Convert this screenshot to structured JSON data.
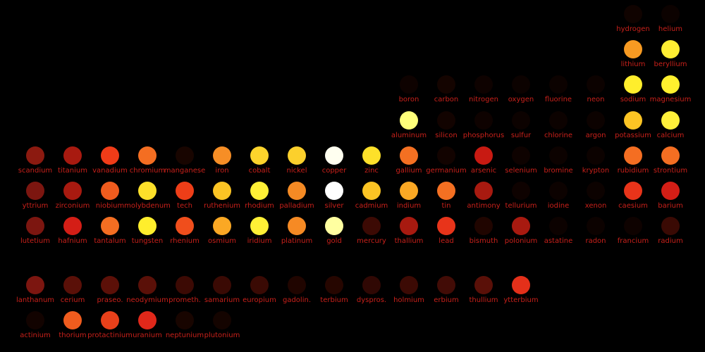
{
  "label_color": "#c8201a",
  "elements": [
    {
      "name": "hydrogen",
      "row": 0,
      "col": 17,
      "color": "#100300"
    },
    {
      "name": "helium",
      "row": 0,
      "col": 18,
      "color": "#0c0200"
    },
    {
      "name": "lithium",
      "row": 1,
      "col": 17,
      "color": "#f79a22"
    },
    {
      "name": "beryllium",
      "row": 1,
      "col": 18,
      "color": "#ffee33"
    },
    {
      "name": "boron",
      "row": 2,
      "col": 11,
      "color": "#0e0200"
    },
    {
      "name": "carbon",
      "row": 2,
      "col": 12,
      "color": "#140400"
    },
    {
      "name": "nitrogen",
      "row": 2,
      "col": 13,
      "color": "#0e0200"
    },
    {
      "name": "oxygen",
      "row": 2,
      "col": 14,
      "color": "#0c0200"
    },
    {
      "name": "fluorine",
      "row": 2,
      "col": 15,
      "color": "#0c0200"
    },
    {
      "name": "neon",
      "row": 2,
      "col": 16,
      "color": "#0c0200"
    },
    {
      "name": "sodium",
      "row": 2,
      "col": 17,
      "color": "#ffee2c"
    },
    {
      "name": "magnesium",
      "row": 2,
      "col": 18,
      "color": "#fff02e"
    },
    {
      "name": "aluminum",
      "row": 3,
      "col": 11,
      "color": "#ffff7a"
    },
    {
      "name": "silicon",
      "row": 3,
      "col": 12,
      "color": "#120300"
    },
    {
      "name": "phosphorus",
      "row": 3,
      "col": 13,
      "color": "#0e0200"
    },
    {
      "name": "sulfur",
      "row": 3,
      "col": 14,
      "color": "#0c0200"
    },
    {
      "name": "chlorine",
      "row": 3,
      "col": 15,
      "color": "#0c0200"
    },
    {
      "name": "argon",
      "row": 3,
      "col": 16,
      "color": "#0c0200"
    },
    {
      "name": "potassium",
      "row": 3,
      "col": 17,
      "color": "#fcc424"
    },
    {
      "name": "calcium",
      "row": 3,
      "col": 18,
      "color": "#fff03a"
    },
    {
      "name": "scandium",
      "row": 4,
      "col": 1,
      "color": "#8c1a10"
    },
    {
      "name": "titanium",
      "row": 4,
      "col": 2,
      "color": "#a81a10"
    },
    {
      "name": "vanadium",
      "row": 4,
      "col": 3,
      "color": "#f03c18"
    },
    {
      "name": "chromium",
      "row": 4,
      "col": 4,
      "color": "#f46e22"
    },
    {
      "name": "manganese",
      "row": 4,
      "col": 5,
      "color": "#180500"
    },
    {
      "name": "iron",
      "row": 4,
      "col": 6,
      "color": "#f68e26"
    },
    {
      "name": "cobalt",
      "row": 4,
      "col": 7,
      "color": "#fcd42c"
    },
    {
      "name": "nickel",
      "row": 4,
      "col": 8,
      "color": "#fcd02c"
    },
    {
      "name": "copper",
      "row": 4,
      "col": 9,
      "color": "#fffff0"
    },
    {
      "name": "zinc",
      "row": 4,
      "col": 10,
      "color": "#fde02a"
    },
    {
      "name": "gallium",
      "row": 4,
      "col": 11,
      "color": "#f47022"
    },
    {
      "name": "germanium",
      "row": 4,
      "col": 12,
      "color": "#120300"
    },
    {
      "name": "arsenic",
      "row": 4,
      "col": 13,
      "color": "#c81a12"
    },
    {
      "name": "selenium",
      "row": 4,
      "col": 14,
      "color": "#0e0200"
    },
    {
      "name": "bromine",
      "row": 4,
      "col": 15,
      "color": "#0c0200"
    },
    {
      "name": "krypton",
      "row": 4,
      "col": 16,
      "color": "#0c0200"
    },
    {
      "name": "rubidium",
      "row": 4,
      "col": 17,
      "color": "#f46e22"
    },
    {
      "name": "strontium",
      "row": 4,
      "col": 18,
      "color": "#f46e22"
    },
    {
      "name": "yttrium",
      "row": 5,
      "col": 1,
      "color": "#7c1610"
    },
    {
      "name": "zirconium",
      "row": 5,
      "col": 2,
      "color": "#a81a10"
    },
    {
      "name": "niobium",
      "row": 5,
      "col": 3,
      "color": "#f05c1e"
    },
    {
      "name": "molybdenum",
      "row": 5,
      "col": 4,
      "color": "#fde02a"
    },
    {
      "name": "tech",
      "row": 5,
      "col": 5,
      "color": "#ee3e18"
    },
    {
      "name": "ruthenium",
      "row": 5,
      "col": 6,
      "color": "#fcc424"
    },
    {
      "name": "rhodium",
      "row": 5,
      "col": 7,
      "color": "#fff036"
    },
    {
      "name": "palladium",
      "row": 5,
      "col": 8,
      "color": "#f48a24"
    },
    {
      "name": "silver",
      "row": 5,
      "col": 9,
      "color": "#ffffff"
    },
    {
      "name": "cadmium",
      "row": 5,
      "col": 10,
      "color": "#fcc424"
    },
    {
      "name": "indium",
      "row": 5,
      "col": 11,
      "color": "#fba824"
    },
    {
      "name": "tin",
      "row": 5,
      "col": 12,
      "color": "#f47022"
    },
    {
      "name": "antimony",
      "row": 5,
      "col": 13,
      "color": "#a81a10"
    },
    {
      "name": "tellurium",
      "row": 5,
      "col": 14,
      "color": "#0e0200"
    },
    {
      "name": "iodine",
      "row": 5,
      "col": 15,
      "color": "#0c0200"
    },
    {
      "name": "xenon",
      "row": 5,
      "col": 16,
      "color": "#0c0200"
    },
    {
      "name": "caesium",
      "row": 5,
      "col": 17,
      "color": "#e8341a"
    },
    {
      "name": "barium",
      "row": 5,
      "col": 18,
      "color": "#d41e16"
    },
    {
      "name": "lutetium",
      "row": 6,
      "col": 1,
      "color": "#7c1610"
    },
    {
      "name": "hafnium",
      "row": 6,
      "col": 2,
      "color": "#d41e16"
    },
    {
      "name": "tantalum",
      "row": 6,
      "col": 3,
      "color": "#f46e22"
    },
    {
      "name": "tungsten",
      "row": 6,
      "col": 4,
      "color": "#ffee2c"
    },
    {
      "name": "rhenium",
      "row": 6,
      "col": 5,
      "color": "#f04e1c"
    },
    {
      "name": "osmium",
      "row": 6,
      "col": 6,
      "color": "#fba824"
    },
    {
      "name": "iridium",
      "row": 6,
      "col": 7,
      "color": "#fff036"
    },
    {
      "name": "platinum",
      "row": 6,
      "col": 8,
      "color": "#f68a24"
    },
    {
      "name": "gold",
      "row": 6,
      "col": 9,
      "color": "#ffffa0"
    },
    {
      "name": "mercury",
      "row": 6,
      "col": 10,
      "color": "#3c0a04"
    },
    {
      "name": "thallium",
      "row": 6,
      "col": 11,
      "color": "#a81a10"
    },
    {
      "name": "lead",
      "row": 6,
      "col": 12,
      "color": "#e8341a"
    },
    {
      "name": "bismuth",
      "row": 6,
      "col": 13,
      "color": "#200500"
    },
    {
      "name": "polonium",
      "row": 6,
      "col": 14,
      "color": "#a81a10"
    },
    {
      "name": "astatine",
      "row": 6,
      "col": 15,
      "color": "#0c0200"
    },
    {
      "name": "radon",
      "row": 6,
      "col": 16,
      "color": "#0c0200"
    },
    {
      "name": "francium",
      "row": 6,
      "col": 17,
      "color": "#0e0200"
    },
    {
      "name": "radium",
      "row": 6,
      "col": 18,
      "color": "#3a0a04"
    },
    {
      "name": "lanthanum",
      "row": 8,
      "col": 1,
      "color": "#7c1610"
    },
    {
      "name": "cerium",
      "row": 8,
      "col": 2,
      "color": "#5a1008"
    },
    {
      "name": "praseo.",
      "row": 8,
      "col": 3,
      "color": "#5c1008"
    },
    {
      "name": "neodymium",
      "row": 8,
      "col": 4,
      "color": "#5a1008"
    },
    {
      "name": "prometh.",
      "row": 8,
      "col": 5,
      "color": "#3c0a04"
    },
    {
      "name": "samarium",
      "row": 8,
      "col": 6,
      "color": "#3a0a04"
    },
    {
      "name": "europium",
      "row": 8,
      "col": 7,
      "color": "#3a0a04"
    },
    {
      "name": "gadolin.",
      "row": 8,
      "col": 8,
      "color": "#200500"
    },
    {
      "name": "terbium",
      "row": 8,
      "col": 9,
      "color": "#260600"
    },
    {
      "name": "dyspros.",
      "row": 8,
      "col": 10,
      "color": "#300804"
    },
    {
      "name": "holmium",
      "row": 8,
      "col": 11,
      "color": "#3c0a04"
    },
    {
      "name": "erbium",
      "row": 8,
      "col": 12,
      "color": "#420c06"
    },
    {
      "name": "thullium",
      "row": 8,
      "col": 13,
      "color": "#5a1008"
    },
    {
      "name": "ytterbium",
      "row": 8,
      "col": 14,
      "color": "#e4301a"
    },
    {
      "name": "actinium",
      "row": 9,
      "col": 1,
      "color": "#120300"
    },
    {
      "name": "thorium",
      "row": 9,
      "col": 2,
      "color": "#f05c1e"
    },
    {
      "name": "protactinium",
      "row": 9,
      "col": 3,
      "color": "#e8401a"
    },
    {
      "name": "uranium",
      "row": 9,
      "col": 4,
      "color": "#e0281a"
    },
    {
      "name": "neptunium",
      "row": 9,
      "col": 5,
      "color": "#180500"
    },
    {
      "name": "plutonium",
      "row": 9,
      "col": 6,
      "color": "#140400"
    }
  ]
}
